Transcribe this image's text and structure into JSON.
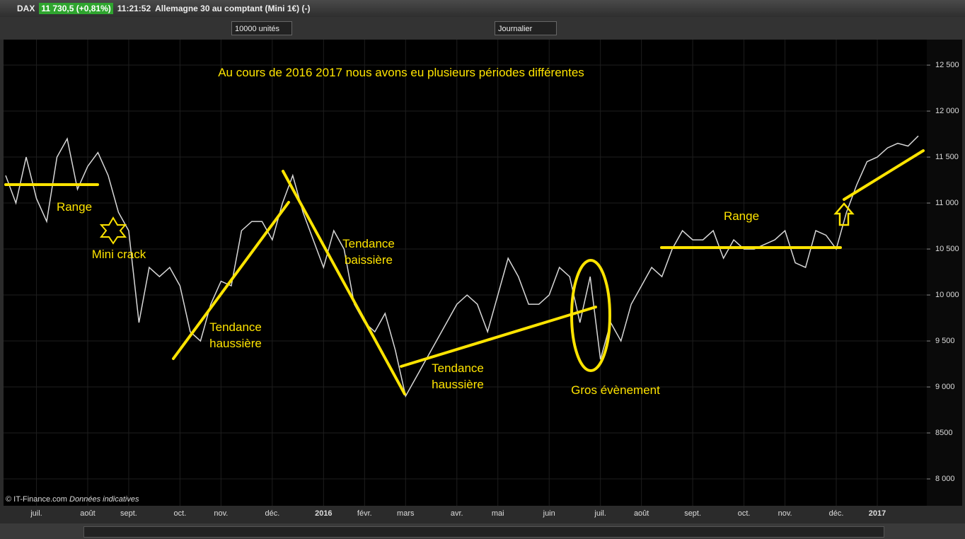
{
  "window": {
    "symbol": "DAX",
    "quote": "11 730,5 (+0,81%)",
    "time": "11:21:52",
    "instrument": "Allemagne 30 au comptant (Mini 1€) (-)"
  },
  "toolbar": {
    "quantity": "10000 unités",
    "period": "Journalier"
  },
  "footer": {
    "copyright": "© IT-Finance.com",
    "note": "Données indicatives"
  },
  "chart_data": {
    "type": "line",
    "title": "Au cours de 2016 2017 nous avons eu plusieurs périodes différentes",
    "annotations": [
      "Range",
      "Mini crack",
      "Tendance haussière",
      "Tendance baissière",
      "Tendance haussière",
      "Gros évènement",
      "Range"
    ],
    "categories": [
      null,
      null,
      null,
      "juil.",
      null,
      null,
      null,
      null,
      "août",
      null,
      null,
      null,
      "sept.",
      null,
      null,
      null,
      null,
      "oct.",
      null,
      null,
      null,
      "nov.",
      null,
      null,
      null,
      null,
      "déc.",
      null,
      null,
      null,
      null,
      "2016",
      null,
      null,
      null,
      "févr.",
      null,
      null,
      null,
      "mars",
      null,
      null,
      null,
      null,
      "avr.",
      null,
      null,
      null,
      "mai",
      null,
      null,
      null,
      null,
      "juin",
      null,
      null,
      null,
      null,
      "juil.",
      null,
      null,
      null,
      "août",
      null,
      null,
      null,
      null,
      "sept.",
      null,
      null,
      null,
      null,
      "oct.",
      null,
      null,
      null,
      "nov.",
      null,
      null,
      null,
      null,
      "déc.",
      null,
      null,
      null,
      "2017",
      null,
      null,
      null,
      null
    ],
    "values": [
      11300,
      11000,
      11500,
      11050,
      10800,
      11500,
      11700,
      11150,
      11400,
      11550,
      11300,
      10900,
      10700,
      9700,
      10300,
      10200,
      10300,
      10100,
      9600,
      9500,
      9900,
      10150,
      10100,
      10700,
      10800,
      10800,
      10600,
      11000,
      11300,
      10900,
      10600,
      10300,
      10700,
      10500,
      9900,
      9700,
      9600,
      9800,
      9400,
      8900,
      9100,
      9300,
      9500,
      9700,
      9900,
      10000,
      9900,
      9600,
      10000,
      10400,
      10200,
      9900,
      9900,
      10000,
      10300,
      10200,
      9700,
      10200,
      9300,
      9700,
      9500,
      9900,
      10100,
      10300,
      10200,
      10500,
      10700,
      10600,
      10600,
      10700,
      10400,
      10600,
      10500,
      10500,
      10550,
      10600,
      10700,
      10350,
      10300,
      10700,
      10650,
      10500,
      10900,
      11200,
      11450,
      11500,
      11600,
      11650,
      11620,
      11730
    ],
    "color": "#d8d8d8",
    "ylim": [
      7785,
      12762
    ],
    "yticks": [
      {
        "value": 8000,
        "label": "8 000"
      },
      8500,
      {
        "value": 9000,
        "label": "9 000"
      },
      {
        "value": 9500,
        "label": "9 500"
      },
      {
        "value": 10000,
        "label": "10 000"
      },
      {
        "value": 10500,
        "label": "10 500"
      },
      {
        "value": 11000,
        "label": "11 000"
      },
      {
        "value": 11500,
        "label": "11 500"
      },
      {
        "value": 12000,
        "label": "12 000"
      },
      {
        "value": 12500,
        "label": "12 500"
      }
    ],
    "grid": true
  }
}
